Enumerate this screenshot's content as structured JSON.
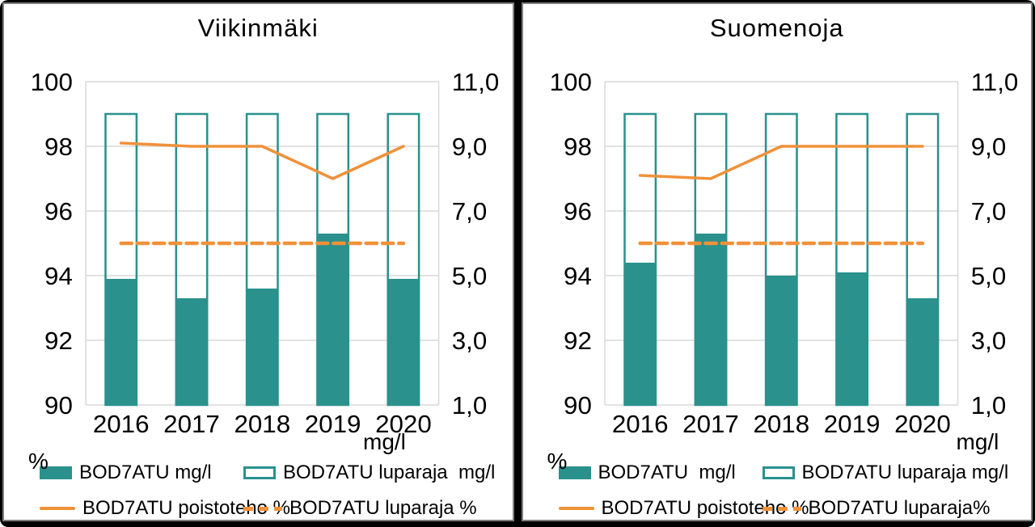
{
  "colors": {
    "teal": "#2A918D",
    "orange": "#F0913A",
    "grid": "#D9D9D9",
    "frame": "#000000",
    "panel_border": "#7F7F7F",
    "text": "#000000"
  },
  "chart_data": [
    {
      "type": "combo-bar-line",
      "title": "Viikinmäki",
      "categories": [
        "2016",
        "2017",
        "2018",
        "2019",
        "2020"
      ],
      "left_axis": {
        "unit": "%",
        "min": 90,
        "max": 100,
        "ticks": [
          "100",
          "98",
          "96",
          "94",
          "92",
          "90"
        ]
      },
      "right_axis": {
        "unit": "mg/l",
        "min": 1.0,
        "max": 11.0,
        "ticks": [
          "11,0",
          "9,0",
          "7,0",
          "5,0",
          "3,0",
          "1,0"
        ]
      },
      "grid": true,
      "legend_position": "bottom",
      "series": [
        {
          "name": "BOD7ATU mg/l",
          "type": "bar",
          "axis": "right",
          "values": [
            4.9,
            4.3,
            4.6,
            6.3,
            4.9
          ]
        },
        {
          "name": "BOD7ATU luparaja  mg/l",
          "type": "bar-outline",
          "axis": "right",
          "values": [
            10.0,
            10.0,
            10.0,
            10.0,
            10.0
          ]
        },
        {
          "name": "BOD7ATU poistoteho %",
          "type": "line",
          "axis": "left",
          "values": [
            98.1,
            98.0,
            98.0,
            97.0,
            98.0
          ]
        },
        {
          "name": "BOD7ATU luparaja %",
          "type": "line-dashed",
          "axis": "left",
          "values": [
            95.0,
            95.0,
            95.0,
            95.0,
            95.0
          ]
        }
      ]
    },
    {
      "type": "combo-bar-line",
      "title": "Suomenoja",
      "categories": [
        "2016",
        "2017",
        "2018",
        "2019",
        "2020"
      ],
      "left_axis": {
        "unit": "%",
        "min": 90,
        "max": 100,
        "ticks": [
          "100",
          "98",
          "96",
          "94",
          "92",
          "90"
        ]
      },
      "right_axis": {
        "unit": "mg/l",
        "min": 1.0,
        "max": 11.0,
        "ticks": [
          "11,0",
          "9,0",
          "7,0",
          "5,0",
          "3,0",
          "1,0"
        ]
      },
      "grid": true,
      "legend_position": "bottom",
      "series": [
        {
          "name": "BOD7ATU  mg/l",
          "type": "bar",
          "axis": "right",
          "values": [
            5.4,
            6.3,
            5.0,
            5.1,
            4.3
          ]
        },
        {
          "name": "BOD7ATU luparaja mg/l",
          "type": "bar-outline",
          "axis": "right",
          "values": [
            10.0,
            10.0,
            10.0,
            10.0,
            10.0
          ]
        },
        {
          "name": "BOD7ATU poistoteho %",
          "type": "line",
          "axis": "left",
          "values": [
            97.1,
            97.0,
            98.0,
            98.0,
            98.0
          ]
        },
        {
          "name": "BOD7ATU luparaja%",
          "type": "line-dashed",
          "axis": "left",
          "values": [
            95.0,
            95.0,
            95.0,
            95.0,
            95.0
          ]
        }
      ]
    }
  ]
}
